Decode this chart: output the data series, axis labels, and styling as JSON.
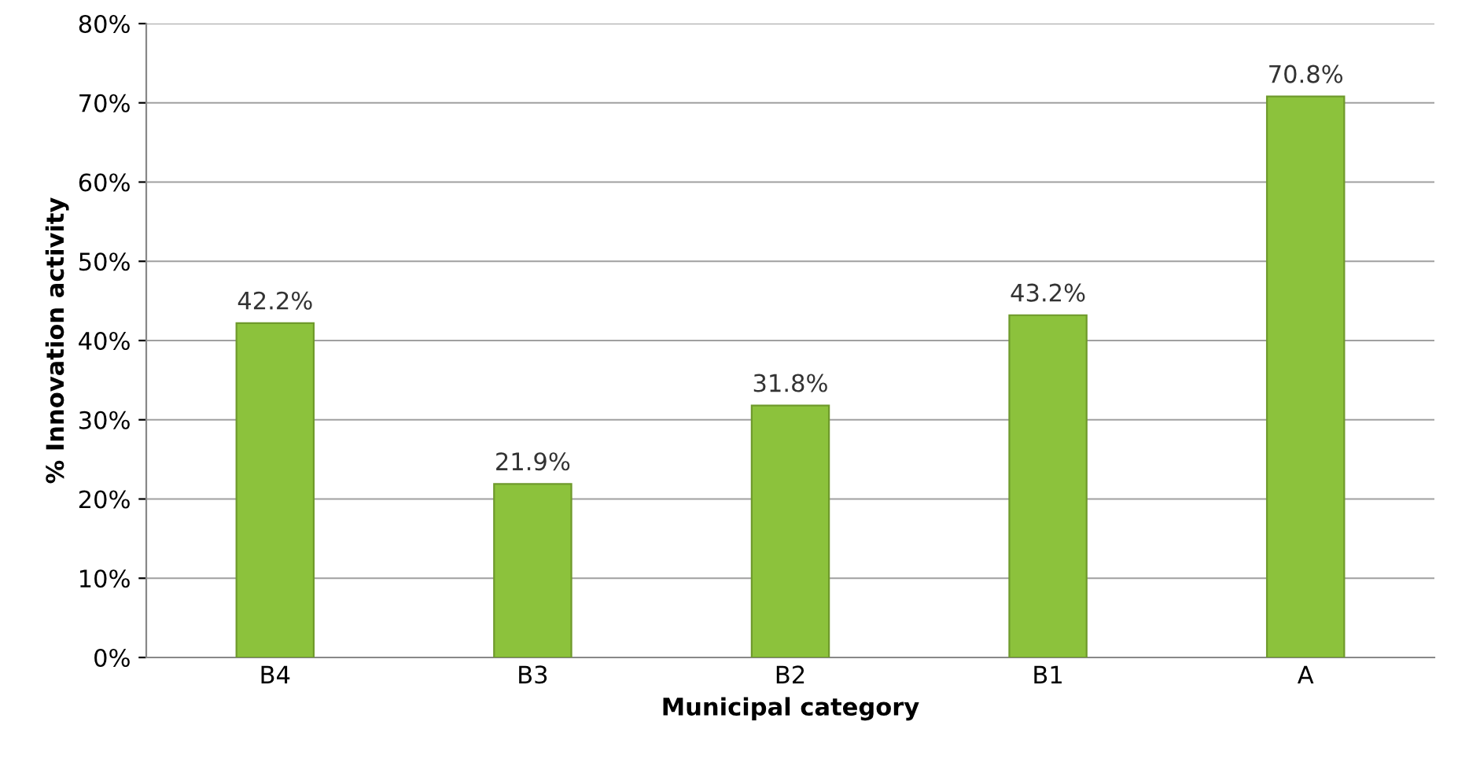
{
  "chart_data": {
    "type": "bar",
    "xlabel": "Municipal category",
    "ylabel": "% Innovation activity",
    "categories": [
      "B4",
      "B3",
      "B2",
      "B1",
      "A"
    ],
    "values": [
      42.2,
      21.9,
      31.8,
      43.2,
      70.8
    ],
    "value_labels": [
      "42.2%",
      "21.9%",
      "31.8%",
      "43.2%",
      "70.8%"
    ],
    "color": "#8cc23c",
    "ylim": [
      0,
      80
    ],
    "yticks": [
      {
        "value": 0,
        "label": "0%"
      },
      {
        "value": 10,
        "label": "10%"
      },
      {
        "value": 20,
        "label": "20%"
      },
      {
        "value": 30,
        "label": "30%"
      },
      {
        "value": 40,
        "label": "40%"
      },
      {
        "value": 50,
        "label": "50%"
      },
      {
        "value": 60,
        "label": "60%"
      },
      {
        "value": 70,
        "label": "70%"
      },
      {
        "value": 80,
        "label": "80%"
      }
    ],
    "grid": "y",
    "legend": false
  }
}
